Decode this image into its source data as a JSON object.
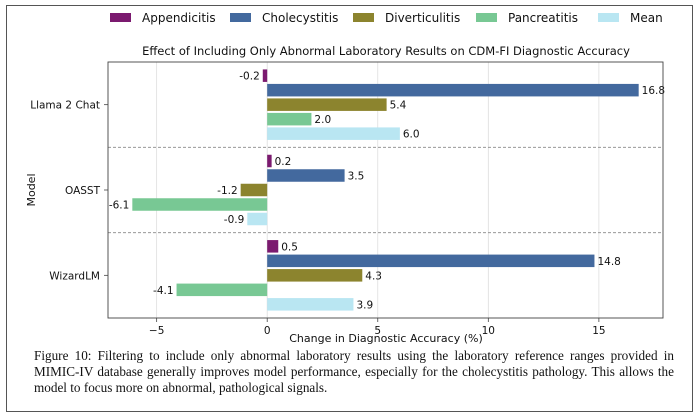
{
  "chart_data": {
    "type": "bar",
    "orientation": "horizontal",
    "title": "Effect of Including Only Abnormal Laboratory Results on CDM-FI Diagnostic Accuracy",
    "xlabel": "Change in Diagnostic Accuracy (%)",
    "ylabel": "Model",
    "xlim": [
      -7.2,
      17.9
    ],
    "xticks": [
      -5,
      0,
      5,
      10,
      15
    ],
    "xtick_labels": [
      "−5",
      "0",
      "5",
      "10",
      "15"
    ],
    "grid": "vertical",
    "legend_position": "top",
    "categories": [
      "Llama 2 Chat",
      "OASST",
      "WizardLM"
    ],
    "series": [
      {
        "name": "Appendicitis",
        "color": "#7b1a6f",
        "values": [
          -0.2,
          0.2,
          0.5
        ],
        "labels": [
          "-0.2",
          "0.2",
          "0.5"
        ]
      },
      {
        "name": "Cholecystitis",
        "color": "#43699e",
        "values": [
          16.8,
          3.5,
          14.8
        ],
        "labels": [
          "16.8",
          "3.5",
          "14.8"
        ]
      },
      {
        "name": "Diverticulitis",
        "color": "#8c842e",
        "values": [
          5.4,
          -1.2,
          4.3
        ],
        "labels": [
          "5.4",
          "-1.2",
          "4.3"
        ]
      },
      {
        "name": "Pancreatitis",
        "color": "#78c894",
        "values": [
          2.0,
          -6.1,
          -4.1
        ],
        "labels": [
          "2.0",
          "-6.1",
          "-4.1"
        ]
      },
      {
        "name": "Mean",
        "color": "#b9e6f2",
        "values": [
          6.0,
          -0.9,
          3.9
        ],
        "labels": [
          "6.0",
          "-0.9",
          "3.9"
        ]
      }
    ]
  },
  "caption": "Figure 10: Filtering to include only abnormal laboratory results using the laboratory reference ranges provided in MIMIC-IV database generally improves model performance, especially for the cholecystitis pathology. This allows the model to focus more on abnormal, pathological signals."
}
